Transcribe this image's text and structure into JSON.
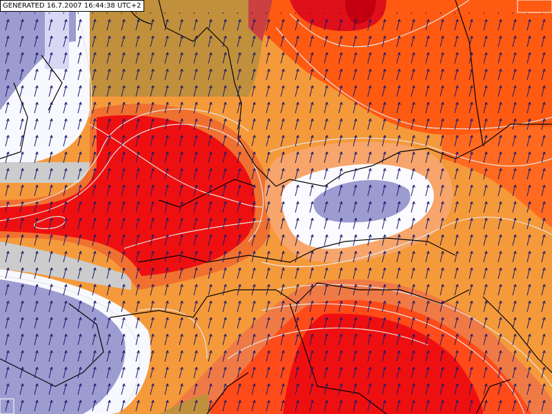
{
  "header": {
    "generated": "GENERATED 16.7.2007 16:44:38 UTC+2"
  }
}
